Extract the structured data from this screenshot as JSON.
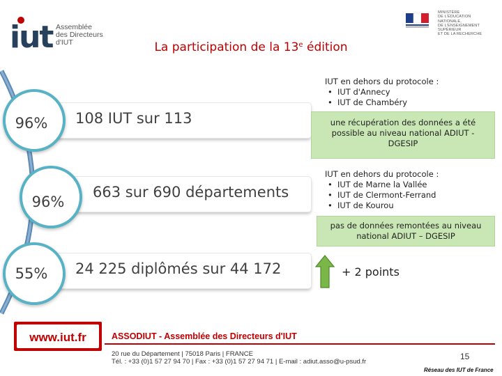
{
  "header": {
    "logo_mark": "iut",
    "logo_lines": [
      "Assemblée",
      "des Directeurs",
      "d'IUT"
    ],
    "ministry_lines": [
      "MINISTÈRE",
      "DE L'ÉDUCATION NATIONALE,",
      "DE L'ENSEIGNEMENT SUPÉRIEUR",
      "ET DE LA RECHERCHE"
    ],
    "title_main": "La participation de la 13",
    "title_sup": "e",
    "title_end": " édition"
  },
  "rows": [
    {
      "percent": "96%",
      "text": "108 IUT sur 113"
    },
    {
      "percent": "96%",
      "text": "663 sur 690 départements"
    },
    {
      "percent": "55%",
      "text": "24 225 diplômés sur 44 172"
    }
  ],
  "notes": {
    "row1_title": "IUT en dehors du protocole :",
    "row1_items": [
      "IUT d'Annecy",
      "IUT de Chambéry"
    ],
    "row1_box": "une récupération des données a été possible au niveau national ADIUT - DGESIP",
    "row2_title": "IUT en dehors du protocole :",
    "row2_items": [
      "IUT de Marne la Vallée",
      "IUT de Clermont-Ferrand",
      "IUT de Kourou"
    ],
    "row2_box": "pas de données remontées au niveau national ADIUT – DGESIP",
    "row3_points": "+ 2 points"
  },
  "footer": {
    "url": "www.iut.fr",
    "org": "ASSODIUT - Assemblée des Directeurs d'IUT",
    "address_line1": "20 rue du Département | 75018 Paris | FRANCE",
    "address_line2": "Tél. : +33 (0)1 57 27 94 70 | Fax : +33 (0)1 57 27 94 71 | E-mail : adiut.asso@u-psud.fr",
    "page_number": "15",
    "network": "Réseau des IUT de France"
  },
  "colors": {
    "accent_red": "#c00000",
    "circle_border": "#56b2c4",
    "green_box": "#c9e7b4",
    "arrow_green": "#7ab648"
  },
  "icons": [
    "iut-logo-icon",
    "french-republic-flag-icon",
    "up-arrow-icon"
  ]
}
